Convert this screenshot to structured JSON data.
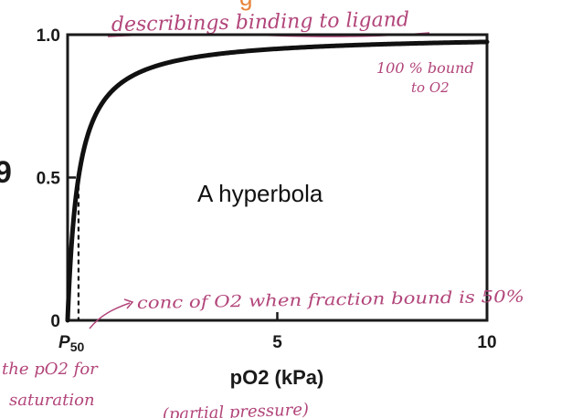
{
  "colors": {
    "curve": "#111111",
    "axis": "#1a1a1a",
    "handwriting": "#b2457a",
    "highlight": "#e8843a"
  },
  "chart_data": {
    "type": "line",
    "xlabel": "pO2 (kPa)",
    "ylabel": "",
    "xlim": [
      0,
      10
    ],
    "ylim": [
      0,
      1
    ],
    "x_ticks": [
      {
        "value": 0,
        "label": "P50"
      },
      {
        "value": 5,
        "label": "5"
      },
      {
        "value": 10,
        "label": "10"
      }
    ],
    "y_ticks": [
      {
        "value": 0,
        "label": "0"
      },
      {
        "value": 0.5,
        "label": "0.5"
      },
      {
        "value": 1,
        "label": "1.0"
      }
    ],
    "series": [
      {
        "model": "hyperbola",
        "p50": 0.26,
        "x": [
          0,
          0.05,
          0.1,
          0.2,
          0.26,
          0.4,
          0.6,
          0.8,
          1,
          1.5,
          2,
          3,
          4,
          5,
          6,
          7,
          8,
          9,
          10
        ],
        "y": [
          0,
          0.16,
          0.28,
          0.43,
          0.5,
          0.61,
          0.7,
          0.75,
          0.79,
          0.85,
          0.88,
          0.92,
          0.94,
          0.95,
          0.96,
          0.965,
          0.97,
          0.97,
          0.975
        ]
      }
    ],
    "p50_marker": {
      "x": 0.26,
      "y": 0.5,
      "style": "dashed"
    },
    "annotations": {
      "curve_label": "A hyperbola"
    },
    "grid": false,
    "legend": "none"
  },
  "handwritten_notes": {
    "top": "describings binding to ligand",
    "saturation_line1": "100 % bound",
    "saturation_line2": "to O2",
    "conc_note": "conc of O2 when fraction bound is 50%",
    "left_line1": "the pO2 for",
    "left_line2": "saturation",
    "bottom": "(partial pressure)"
  },
  "edge_fragments": {
    "left": "9",
    "top": "g"
  }
}
